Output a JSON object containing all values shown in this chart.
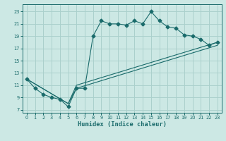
{
  "xlabel": "Humidex (Indice chaleur)",
  "bg_color": "#cce8e4",
  "grid_color": "#aad0cc",
  "line_color": "#1a6b6b",
  "xlim": [
    -0.5,
    23.5
  ],
  "ylim": [
    6.5,
    24.2
  ],
  "xticks": [
    0,
    1,
    2,
    3,
    4,
    5,
    6,
    7,
    8,
    9,
    10,
    11,
    12,
    13,
    14,
    15,
    16,
    17,
    18,
    19,
    20,
    21,
    22,
    23
  ],
  "yticks": [
    7,
    9,
    11,
    13,
    15,
    17,
    19,
    21,
    23
  ],
  "series": [
    {
      "x": [
        0,
        1,
        2,
        3,
        4,
        5,
        6,
        7,
        8,
        9,
        10,
        11,
        12,
        13,
        14,
        15,
        16,
        17,
        18,
        19,
        20,
        21,
        22,
        23
      ],
      "y": [
        12,
        10.5,
        9.5,
        9.0,
        8.7,
        7.5,
        10.5,
        10.5,
        19.0,
        21.5,
        21.0,
        21.0,
        20.8,
        21.5,
        21.0,
        23.0,
        21.5,
        20.5,
        20.3,
        19.2,
        19.0,
        18.5,
        17.5,
        18.0
      ],
      "marker": "D",
      "markersize": 2.5
    },
    {
      "x": [
        0,
        5,
        6,
        23
      ],
      "y": [
        12,
        8.0,
        11.0,
        18.0
      ],
      "marker": null
    },
    {
      "x": [
        0,
        5,
        6,
        23
      ],
      "y": [
        12,
        8.0,
        10.5,
        17.5
      ],
      "marker": null
    }
  ]
}
